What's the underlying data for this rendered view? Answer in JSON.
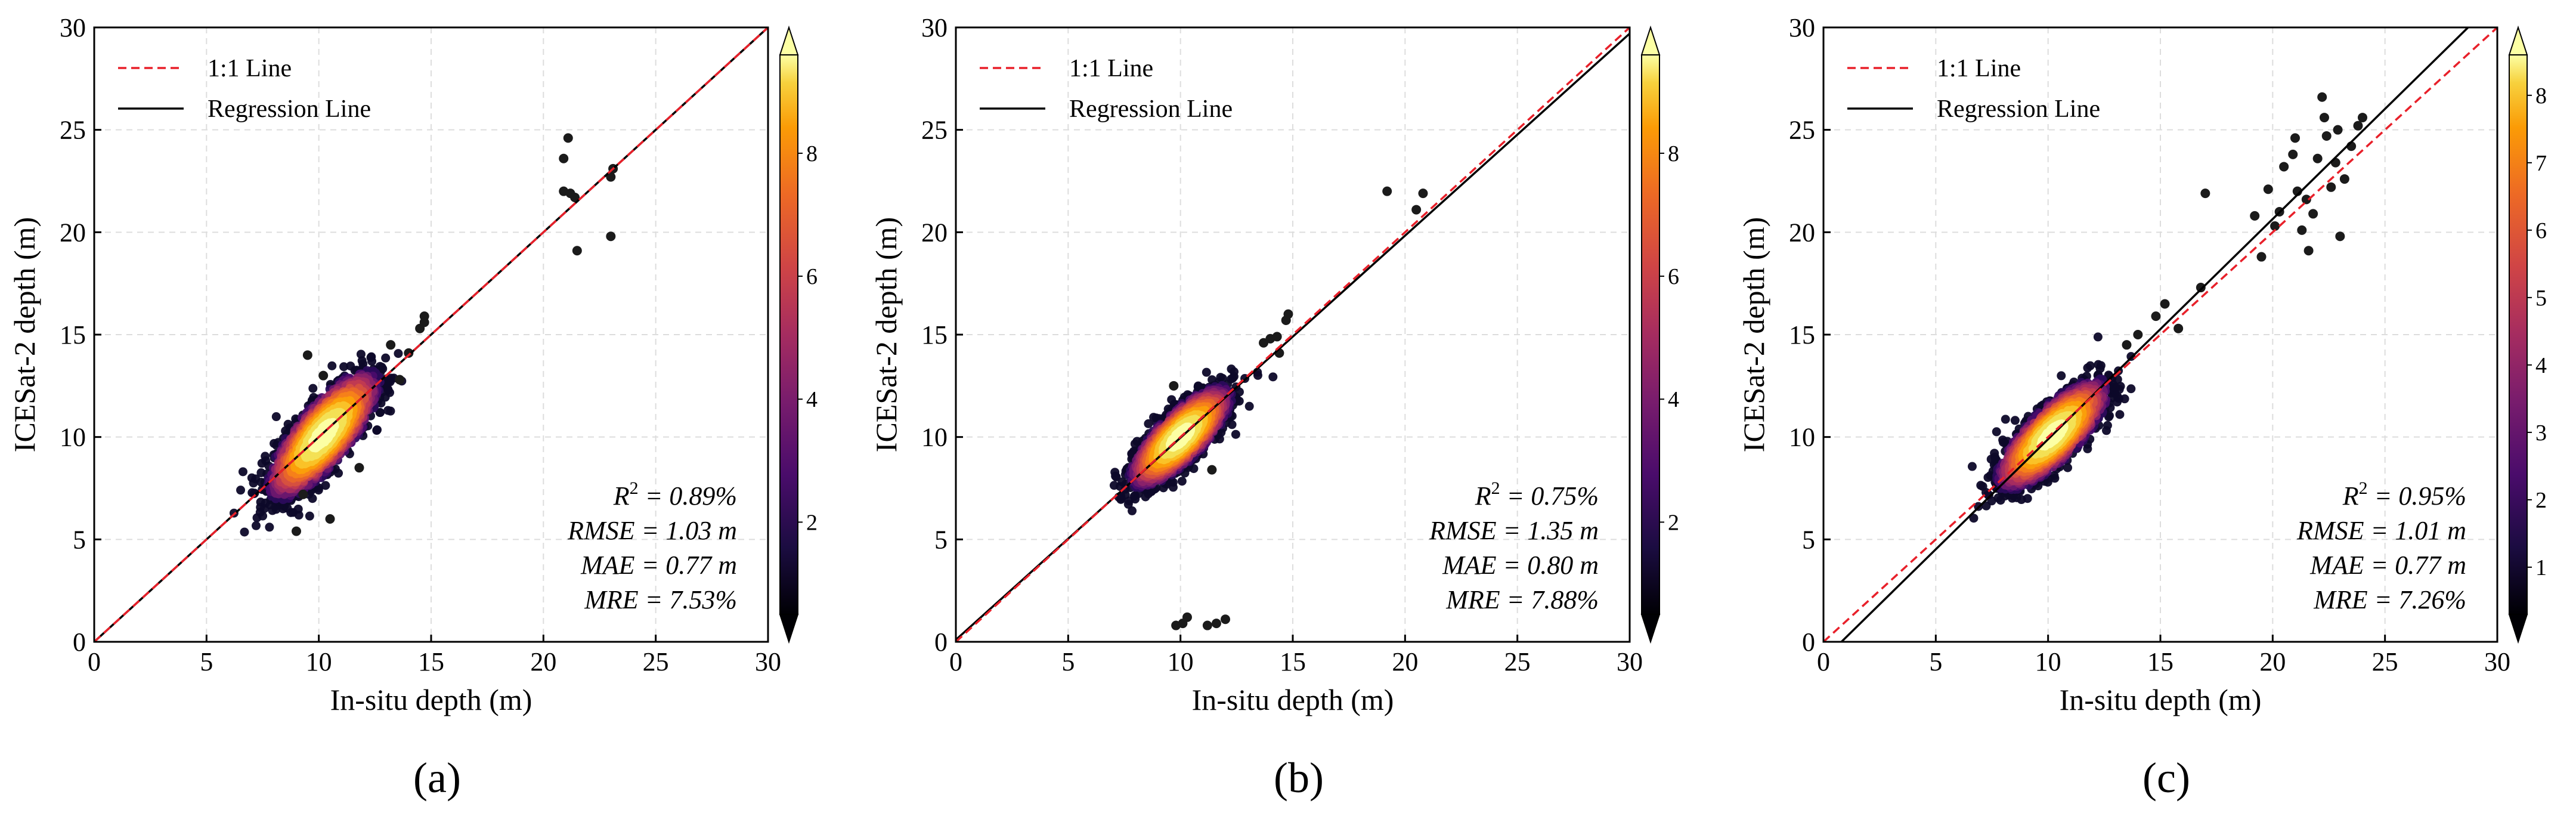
{
  "chart_data": [
    {
      "type": "scatter",
      "panel_label": "(a)",
      "xlabel": "In-situ depth (m)",
      "ylabel": "ICESat-2 depth (m)",
      "xlim": [
        0,
        30
      ],
      "ylim": [
        0,
        30
      ],
      "xticks": [
        0,
        5,
        10,
        15,
        20,
        25,
        30
      ],
      "yticks": [
        0,
        5,
        10,
        15,
        20,
        25,
        30
      ],
      "grid": true,
      "legend_position": "top-left",
      "legend": [
        "1:1 Line",
        "Regression Line"
      ],
      "one_to_one_line": [
        [
          0,
          0
        ],
        [
          30,
          30
        ]
      ],
      "regression_line": [
        [
          0,
          0
        ],
        [
          30,
          30
        ]
      ],
      "colorbar": {
        "ticks": [
          2,
          4,
          6,
          8
        ],
        "range": [
          0.5,
          9.6
        ],
        "colormap": "inferno"
      },
      "cluster": {
        "center": [
          10.2,
          10.1
        ],
        "extent_x": [
          8,
          13.5
        ],
        "extent_y": [
          7,
          14
        ]
      },
      "outliers": [
        [
          9.0,
          5.4
        ],
        [
          10.5,
          6.0
        ],
        [
          9.5,
          14.0
        ],
        [
          10.2,
          13.0
        ],
        [
          13.2,
          14.5
        ],
        [
          14.0,
          14.1
        ],
        [
          14.7,
          15.6
        ],
        [
          14.7,
          15.9
        ],
        [
          14.5,
          15.3
        ],
        [
          13.6,
          12.8
        ],
        [
          11.8,
          8.5
        ],
        [
          9.3,
          7.2
        ],
        [
          20.9,
          22.0
        ],
        [
          20.9,
          23.6
        ],
        [
          21.1,
          24.6
        ],
        [
          21.2,
          21.9
        ],
        [
          21.4,
          21.7
        ],
        [
          21.5,
          19.1
        ],
        [
          23.0,
          22.7
        ],
        [
          23.1,
          23.1
        ],
        [
          23.0,
          19.8
        ]
      ],
      "stats": [
        {
          "lhs": "R",
          "sup": "2",
          "rhs": " = 0.89%"
        },
        {
          "lhs": "RMSE",
          "sup": "",
          "rhs": " = 1.03 m"
        },
        {
          "lhs": "MAE",
          "sup": "",
          "rhs": " = 0.77 m"
        },
        {
          "lhs": "MRE",
          "sup": "",
          "rhs": " = 7.53%"
        }
      ]
    },
    {
      "type": "scatter",
      "panel_label": "(b)",
      "xlabel": "In-situ depth (m)",
      "ylabel": "ICESat-2 depth (m)",
      "xlim": [
        0,
        30
      ],
      "ylim": [
        0,
        30
      ],
      "xticks": [
        0,
        5,
        10,
        15,
        20,
        25,
        30
      ],
      "yticks": [
        0,
        5,
        10,
        15,
        20,
        25,
        30
      ],
      "grid": true,
      "legend_position": "top-left",
      "legend": [
        "1:1 Line",
        "Regression Line"
      ],
      "one_to_one_line": [
        [
          0,
          0
        ],
        [
          30,
          30
        ]
      ],
      "regression_line": [
        [
          0,
          0.1
        ],
        [
          30,
          29.7
        ]
      ],
      "colorbar": {
        "ticks": [
          2,
          4,
          6,
          8
        ],
        "range": [
          0.5,
          9.6
        ],
        "colormap": "inferno"
      },
      "cluster": {
        "center": [
          10.0,
          10.0
        ],
        "extent_x": [
          8,
          13
        ],
        "extent_y": [
          7.5,
          13
        ]
      },
      "outliers": [
        [
          9.8,
          0.8
        ],
        [
          10.1,
          0.9
        ],
        [
          10.3,
          1.2
        ],
        [
          11.2,
          0.8
        ],
        [
          11.6,
          0.9
        ],
        [
          12.0,
          1.1
        ],
        [
          13.7,
          14.6
        ],
        [
          14.0,
          14.8
        ],
        [
          14.3,
          14.9
        ],
        [
          14.7,
          15.7
        ],
        [
          14.8,
          16.0
        ],
        [
          14.4,
          14.1
        ],
        [
          19.2,
          22.0
        ],
        [
          20.5,
          21.1
        ],
        [
          20.8,
          21.9
        ],
        [
          9.7,
          12.5
        ],
        [
          11.4,
          8.4
        ]
      ],
      "stats": [
        {
          "lhs": "R",
          "sup": "2",
          "rhs": " = 0.75%"
        },
        {
          "lhs": "RMSE",
          "sup": "",
          "rhs": " = 1.35 m"
        },
        {
          "lhs": "MAE",
          "sup": "",
          "rhs": " = 0.80 m"
        },
        {
          "lhs": "MRE",
          "sup": "",
          "rhs": " = 7.88%"
        }
      ]
    },
    {
      "type": "scatter",
      "panel_label": "(c)",
      "xlabel": "In-situ depth (m)",
      "ylabel": "ICESat-2 depth (m)",
      "xlim": [
        0,
        30
      ],
      "ylim": [
        0,
        30
      ],
      "xticks": [
        0,
        5,
        10,
        15,
        20,
        25,
        30
      ],
      "yticks": [
        0,
        5,
        10,
        15,
        20,
        25,
        30
      ],
      "grid": true,
      "legend_position": "top-left",
      "legend": [
        "1:1 Line",
        "Regression Line"
      ],
      "one_to_one_line": [
        [
          0,
          0
        ],
        [
          30,
          30
        ]
      ],
      "regression_line": [
        [
          0.8,
          0
        ],
        [
          28.7,
          30
        ]
      ],
      "colorbar": {
        "ticks": [
          1,
          2,
          3,
          4,
          5,
          6,
          7,
          8
        ],
        "range": [
          0.3,
          8.6
        ],
        "colormap": "inferno"
      },
      "cluster": {
        "center": [
          10.2,
          10.1
        ],
        "extent_x": [
          8,
          13.5
        ],
        "extent_y": [
          7.5,
          13.5
        ]
      },
      "outliers": [
        [
          13.5,
          14.5
        ],
        [
          14.0,
          15.0
        ],
        [
          14.8,
          15.9
        ],
        [
          15.2,
          16.5
        ],
        [
          15.8,
          15.3
        ],
        [
          16.8,
          17.3
        ],
        [
          17.0,
          21.9
        ],
        [
          19.5,
          18.8
        ],
        [
          19.2,
          20.8
        ],
        [
          19.8,
          22.1
        ],
        [
          20.3,
          21.0
        ],
        [
          20.5,
          23.2
        ],
        [
          20.9,
          23.8
        ],
        [
          21.0,
          24.6
        ],
        [
          21.1,
          22.0
        ],
        [
          21.5,
          21.6
        ],
        [
          21.6,
          19.1
        ],
        [
          21.8,
          20.9
        ],
        [
          22.0,
          23.6
        ],
        [
          22.2,
          26.6
        ],
        [
          22.3,
          25.6
        ],
        [
          22.4,
          24.7
        ],
        [
          22.6,
          22.2
        ],
        [
          22.9,
          25.0
        ],
        [
          23.0,
          19.8
        ],
        [
          23.2,
          22.6
        ],
        [
          23.5,
          24.2
        ],
        [
          23.8,
          25.2
        ],
        [
          24.0,
          25.6
        ],
        [
          21.3,
          20.1
        ],
        [
          20.1,
          20.3
        ],
        [
          22.8,
          23.4
        ]
      ],
      "stats": [
        {
          "lhs": "R",
          "sup": "2",
          "rhs": " = 0.95%"
        },
        {
          "lhs": "RMSE",
          "sup": "",
          "rhs": " = 1.01 m"
        },
        {
          "lhs": "MAE",
          "sup": "",
          "rhs": " = 0.77 m"
        },
        {
          "lhs": "MRE",
          "sup": "",
          "rhs": " = 7.26%"
        }
      ]
    }
  ],
  "colors": {
    "one_to_one_line": "#e8202a",
    "regression_line": "#000000",
    "grid": "#dddddd",
    "outlier": "#1b1b1b"
  }
}
